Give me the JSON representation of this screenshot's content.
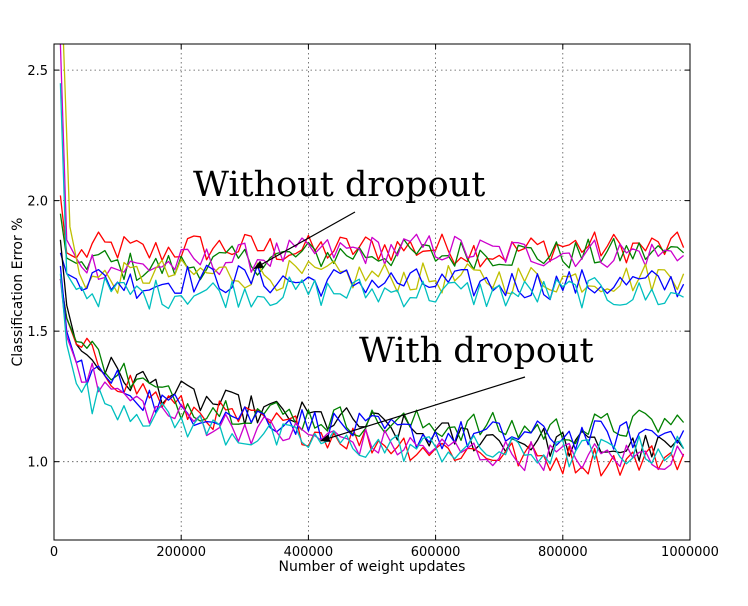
{
  "chart_data": {
    "type": "line",
    "xlabel": "Number of weight updates",
    "ylabel": "Classification Error %",
    "xlim": [
      0,
      1000000
    ],
    "ylim": [
      0.7,
      2.6
    ],
    "xticks": [
      0,
      200000,
      400000,
      600000,
      800000,
      1000000
    ],
    "xtick_labels": [
      "0",
      "200000",
      "400000",
      "600000",
      "800000",
      "1000000"
    ],
    "yticks": [
      1.0,
      1.5,
      2.0,
      2.5
    ],
    "ytick_labels": [
      "1.0",
      "1.5",
      "2.0",
      "2.5"
    ],
    "grid": true,
    "annotations": [
      {
        "text": "Without dropout",
        "arrow_to": [
          590000,
          1.74
        ]
      },
      {
        "text": "With dropout",
        "arrow_to": [
          800000,
          1.08
        ]
      }
    ],
    "colors": {
      "red": "#ff0000",
      "green": "#008000",
      "blue": "#0000ff",
      "magenta": "#cc00cc",
      "yellow": "#bfbf00",
      "cyan": "#00bfbf",
      "black": "#000000"
    },
    "series": [
      {
        "group": "without",
        "color": "red",
        "x": [
          10000,
          20000,
          35000,
          60000,
          100000,
          150000,
          200000,
          300000,
          400000,
          500000,
          600000,
          700000,
          800000,
          900000,
          990000
        ],
        "y": [
          2.02,
          1.8,
          1.78,
          1.82,
          1.82,
          1.8,
          1.82,
          1.82,
          1.81,
          1.82,
          1.82,
          1.8,
          1.83,
          1.82,
          1.82
        ]
      },
      {
        "group": "without",
        "color": "green",
        "x": [
          10000,
          20000,
          35000,
          60000,
          100000,
          150000,
          200000,
          300000,
          400000,
          500000,
          600000,
          700000,
          800000,
          900000,
          990000
        ],
        "y": [
          1.95,
          1.78,
          1.76,
          1.78,
          1.75,
          1.74,
          1.75,
          1.77,
          1.79,
          1.8,
          1.79,
          1.8,
          1.79,
          1.8,
          1.8
        ]
      },
      {
        "group": "without",
        "color": "magenta",
        "x": [
          10000,
          20000,
          35000,
          60000,
          100000,
          150000,
          200000,
          300000,
          400000,
          500000,
          600000,
          700000,
          800000,
          900000,
          990000
        ],
        "y": [
          2.6,
          1.85,
          1.78,
          1.76,
          1.74,
          1.75,
          1.76,
          1.78,
          1.8,
          1.81,
          1.82,
          1.8,
          1.8,
          1.8,
          1.79
        ]
      },
      {
        "group": "without",
        "color": "yellow",
        "x": [
          15000,
          25000,
          40000,
          60000,
          100000,
          150000,
          200000,
          300000,
          400000,
          500000,
          600000,
          700000,
          800000,
          900000,
          990000
        ],
        "y": [
          2.6,
          1.9,
          1.72,
          1.7,
          1.7,
          1.72,
          1.72,
          1.72,
          1.71,
          1.71,
          1.7,
          1.7,
          1.7,
          1.7,
          1.72
        ]
      },
      {
        "group": "without",
        "color": "blue",
        "x": [
          10000,
          20000,
          35000,
          60000,
          100000,
          150000,
          200000,
          300000,
          400000,
          500000,
          600000,
          700000,
          800000,
          900000,
          990000
        ],
        "y": [
          1.8,
          1.72,
          1.7,
          1.7,
          1.69,
          1.68,
          1.7,
          1.7,
          1.69,
          1.69,
          1.68,
          1.68,
          1.68,
          1.68,
          1.68
        ]
      },
      {
        "group": "without",
        "color": "cyan",
        "x": [
          10000,
          20000,
          35000,
          60000,
          100000,
          150000,
          200000,
          300000,
          400000,
          500000,
          600000,
          700000,
          800000,
          900000,
          990000
        ],
        "y": [
          2.45,
          1.72,
          1.66,
          1.65,
          1.65,
          1.64,
          1.65,
          1.65,
          1.65,
          1.65,
          1.65,
          1.64,
          1.65,
          1.64,
          1.63
        ]
      },
      {
        "group": "with",
        "color": "black",
        "x": [
          10000,
          20000,
          35000,
          60000,
          100000,
          150000,
          200000,
          300000,
          400000,
          500000,
          600000,
          700000,
          800000,
          900000,
          990000
        ],
        "y": [
          1.85,
          1.6,
          1.45,
          1.4,
          1.33,
          1.3,
          1.25,
          1.2,
          1.17,
          1.14,
          1.1,
          1.09,
          1.07,
          1.05,
          1.05
        ]
      },
      {
        "group": "with",
        "color": "red",
        "x": [
          10000,
          20000,
          35000,
          60000,
          100000,
          150000,
          200000,
          300000,
          400000,
          500000,
          600000,
          700000,
          800000,
          900000,
          990000
        ],
        "y": [
          1.7,
          1.55,
          1.45,
          1.4,
          1.32,
          1.26,
          1.2,
          1.16,
          1.12,
          1.08,
          1.05,
          1.03,
          1.01,
          1.0,
          1.03
        ]
      },
      {
        "group": "with",
        "color": "green",
        "x": [
          10000,
          20000,
          35000,
          60000,
          100000,
          150000,
          200000,
          300000,
          400000,
          500000,
          600000,
          700000,
          800000,
          900000,
          990000
        ],
        "y": [
          1.7,
          1.55,
          1.46,
          1.42,
          1.35,
          1.28,
          1.22,
          1.2,
          1.17,
          1.15,
          1.14,
          1.13,
          1.12,
          1.14,
          1.15
        ]
      },
      {
        "group": "with",
        "color": "blue",
        "x": [
          10000,
          20000,
          35000,
          60000,
          100000,
          150000,
          200000,
          300000,
          400000,
          500000,
          600000,
          700000,
          800000,
          900000,
          990000
        ],
        "y": [
          1.75,
          1.5,
          1.38,
          1.34,
          1.3,
          1.24,
          1.2,
          1.18,
          1.15,
          1.12,
          1.1,
          1.1,
          1.1,
          1.1,
          1.12
        ]
      },
      {
        "group": "with",
        "color": "magenta",
        "x": [
          10000,
          20000,
          35000,
          60000,
          100000,
          150000,
          200000,
          300000,
          400000,
          500000,
          600000,
          700000,
          800000,
          900000,
          990000
        ],
        "y": [
          1.7,
          1.48,
          1.38,
          1.32,
          1.26,
          1.2,
          1.17,
          1.13,
          1.1,
          1.07,
          1.05,
          1.03,
          1.02,
          1.02,
          1.02
        ]
      },
      {
        "group": "with",
        "color": "cyan",
        "x": [
          10000,
          20000,
          35000,
          60000,
          100000,
          150000,
          200000,
          300000,
          400000,
          500000,
          600000,
          700000,
          800000,
          900000,
          990000
        ],
        "y": [
          1.72,
          1.45,
          1.3,
          1.24,
          1.22,
          1.18,
          1.15,
          1.1,
          1.08,
          1.06,
          1.05,
          1.04,
          1.03,
          1.04,
          1.05
        ]
      }
    ]
  }
}
